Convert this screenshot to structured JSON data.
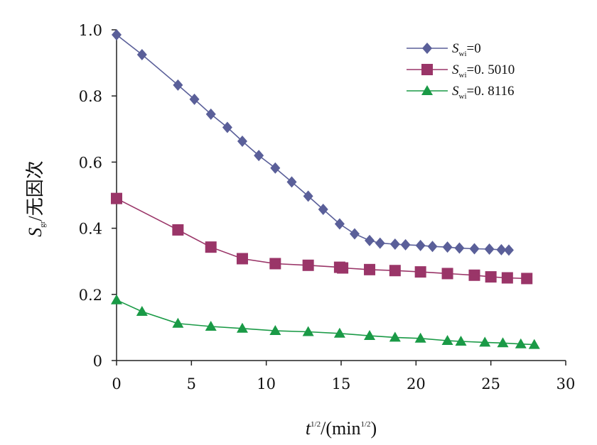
{
  "chart_data": {
    "type": "line",
    "title": "",
    "xlabel": {
      "base": "t",
      "base_sup": "1/2",
      "unit_prefix": "/(min",
      "unit_sup": "1/2",
      "unit_suffix": ")"
    },
    "ylabel": {
      "base": "S",
      "base_sub": "gr",
      "rest": "/无因次"
    },
    "xlim": [
      0,
      30
    ],
    "ylim": [
      0,
      1.0
    ],
    "xticks": [
      0,
      5,
      10,
      15,
      20,
      25,
      30
    ],
    "xtick_labels": [
      "0",
      "5",
      "10",
      "15",
      "20",
      "25",
      "30"
    ],
    "yticks": [
      0,
      0.2,
      0.4,
      0.6,
      0.8,
      1.0
    ],
    "ytick_labels": [
      "0",
      "0.2",
      "0.4",
      "0.6",
      "0.8",
      "1.0"
    ],
    "grid": false,
    "legend_position": "top-right",
    "series": [
      {
        "name": "Swi=0",
        "label_base": "S",
        "label_sub": "wi",
        "label_value": "=0",
        "color": "#5a5f99",
        "marker": "diamond",
        "x": [
          0,
          1.7,
          4.1,
          5.2,
          6.3,
          7.4,
          8.4,
          9.5,
          10.6,
          11.7,
          12.8,
          13.8,
          14.9,
          15.9,
          16.9,
          17.6,
          18.6,
          19.3,
          20.3,
          21.1,
          22.1,
          22.9,
          23.9,
          24.9,
          25.7,
          26.2
        ],
        "y": [
          0.985,
          0.925,
          0.833,
          0.79,
          0.745,
          0.705,
          0.663,
          0.62,
          0.582,
          0.54,
          0.497,
          0.457,
          0.413,
          0.383,
          0.363,
          0.355,
          0.352,
          0.35,
          0.348,
          0.345,
          0.343,
          0.34,
          0.338,
          0.337,
          0.335,
          0.334
        ]
      },
      {
        "name": "Swi=0.5010",
        "label_base": "S",
        "label_sub": "wi",
        "label_value": "=0. 5010",
        "color": "#9a3568",
        "marker": "square",
        "x": [
          0,
          4.1,
          6.3,
          8.4,
          10.6,
          12.8,
          14.9,
          15.1,
          16.9,
          18.6,
          20.3,
          22.1,
          23.9,
          25.0,
          26.1,
          27.4
        ],
        "y": [
          0.49,
          0.395,
          0.343,
          0.308,
          0.293,
          0.288,
          0.282,
          0.28,
          0.275,
          0.272,
          0.268,
          0.263,
          0.258,
          0.253,
          0.25,
          0.248
        ]
      },
      {
        "name": "Swi=0.8116",
        "label_base": "S",
        "label_sub": "wi",
        "label_value": "=0. 8116",
        "color": "#1a9a46",
        "marker": "triangle",
        "x": [
          0,
          1.7,
          4.1,
          6.3,
          8.4,
          10.6,
          12.8,
          14.9,
          16.9,
          18.6,
          20.3,
          22.1,
          23.0,
          24.6,
          25.8,
          27.0,
          27.9
        ],
        "y": [
          0.183,
          0.148,
          0.112,
          0.103,
          0.097,
          0.09,
          0.087,
          0.082,
          0.075,
          0.07,
          0.067,
          0.06,
          0.058,
          0.055,
          0.053,
          0.05,
          0.048
        ]
      }
    ]
  }
}
